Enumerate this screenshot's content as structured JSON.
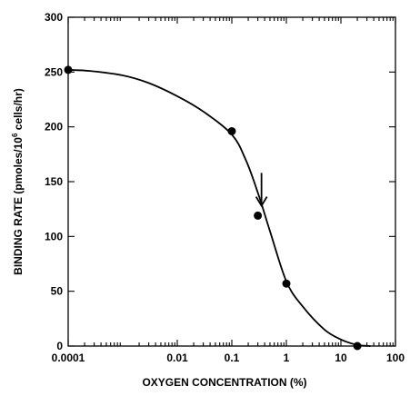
{
  "chart_data": {
    "type": "scatter",
    "xlabel": "OXYGEN CONCENTRATION (%)",
    "ylabel_main": "BINDING RATE (pmoles/10",
    "ylabel_sup": "6",
    "ylabel_tail": " cells/hr)",
    "x_scale": "log",
    "xlim": [
      0.0001,
      100
    ],
    "ylim": [
      0,
      300
    ],
    "x_ticks": [
      0.0001,
      0.01,
      0.1,
      1,
      10,
      100
    ],
    "x_tick_labels": [
      "0.0001",
      "0.01",
      "0.1",
      "1",
      "10",
      "100"
    ],
    "y_ticks": [
      0,
      50,
      100,
      150,
      200,
      250,
      300
    ],
    "y_tick_labels": [
      "0",
      "50",
      "100",
      "150",
      "200",
      "250",
      "300"
    ],
    "grid": false,
    "points": [
      {
        "x": 0.0001,
        "y": 252
      },
      {
        "x": 0.1,
        "y": 196
      },
      {
        "x": 0.3,
        "y": 119
      },
      {
        "x": 1,
        "y": 57
      },
      {
        "x": 20,
        "y": 0
      }
    ],
    "fit_curve": [
      {
        "x": 0.0001,
        "y": 252
      },
      {
        "x": 0.00025,
        "y": 251
      },
      {
        "x": 0.001,
        "y": 247
      },
      {
        "x": 0.003,
        "y": 240
      },
      {
        "x": 0.01,
        "y": 228
      },
      {
        "x": 0.03,
        "y": 214
      },
      {
        "x": 0.1,
        "y": 193
      },
      {
        "x": 0.18,
        "y": 170
      },
      {
        "x": 0.3,
        "y": 140
      },
      {
        "x": 0.5,
        "y": 105
      },
      {
        "x": 1,
        "y": 59
      },
      {
        "x": 2,
        "y": 36
      },
      {
        "x": 5,
        "y": 15
      },
      {
        "x": 10,
        "y": 6
      },
      {
        "x": 20,
        "y": 1
      },
      {
        "x": 35,
        "y": 0
      }
    ],
    "annotation_arrow": {
      "x": 0.35,
      "y_from": 158,
      "y_to": 128
    }
  }
}
